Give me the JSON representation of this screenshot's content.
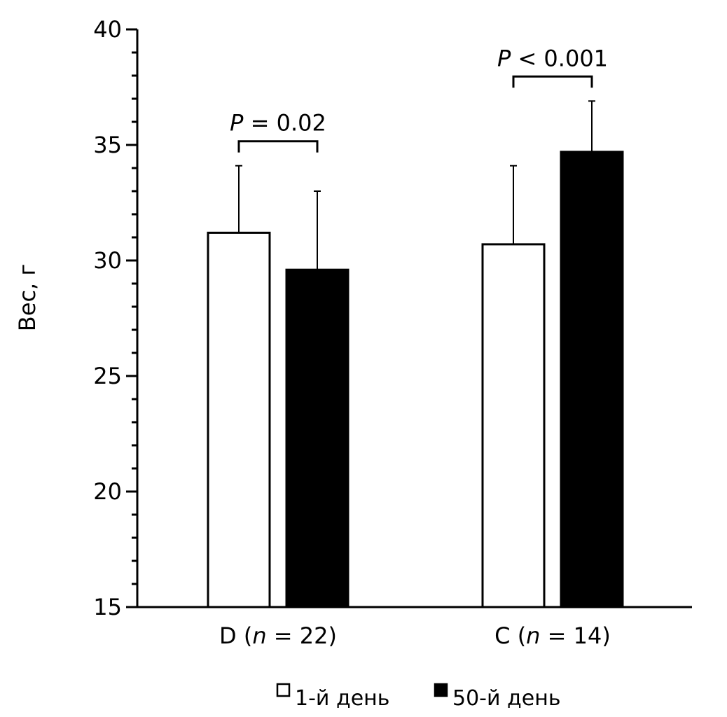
{
  "chart_data": {
    "type": "bar",
    "title": "",
    "xlabel": "",
    "ylabel": "Вес, г",
    "ylim": [
      15,
      40
    ],
    "y_ticks": [
      "15",
      "20",
      "25",
      "30",
      "35",
      "40"
    ],
    "grid": false,
    "legend_position": "bottom-center",
    "categories": [
      {
        "name": "D",
        "n_prefix": "n",
        "n_eq": " = 22",
        "label_open": "D (",
        "label_close": ")"
      },
      {
        "name": "C",
        "n_prefix": "n",
        "n_eq": " = 14",
        "label_open": "C (",
        "label_close": ")"
      }
    ],
    "series": [
      {
        "name": "1-й день",
        "color": "#ffffff",
        "values": [
          31.2,
          30.7
        ],
        "errors": [
          2.9,
          3.4
        ]
      },
      {
        "name": "50-й день",
        "color": "#000000",
        "values": [
          29.6,
          34.7
        ],
        "errors": [
          3.4,
          2.2
        ]
      }
    ],
    "annotations": [
      {
        "category": 0,
        "p_symbol": "P",
        "text": " = 0.02"
      },
      {
        "category": 1,
        "p_symbol": "P",
        "text": " < 0.001"
      }
    ]
  }
}
